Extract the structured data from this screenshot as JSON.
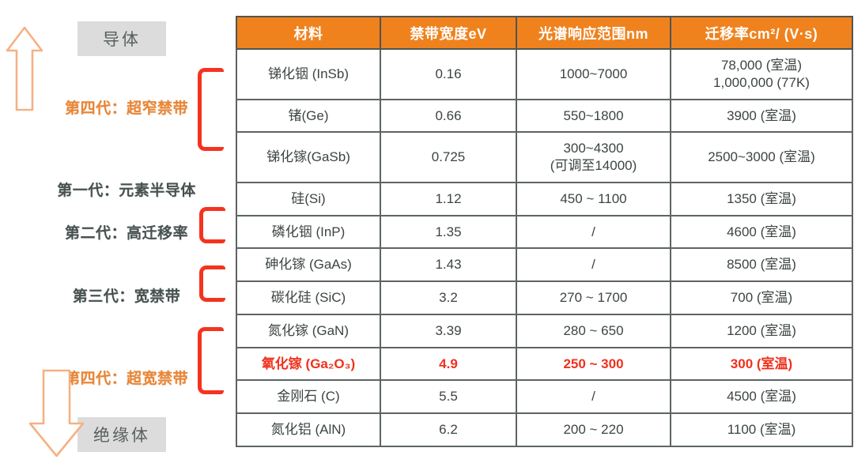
{
  "colors": {
    "header_orange": "#F0821E",
    "generation_orange": "#E98636",
    "highlight_red": "#F1301C",
    "bracket_red": "#F5331F",
    "arrow_outline": "#F5B183",
    "box_gray": "#DCDCDC",
    "table_border": "#5E6464",
    "cell_text": "#3C4443"
  },
  "left_panel": {
    "conductor_label": "导体",
    "insulator_label": "绝缘体",
    "generations": [
      {
        "id": "gen4-narrow",
        "label": "第四代：超窄禁带",
        "emphasis": "orange",
        "bracket_rows": [
          "锑化铟 (InSb)",
          "锗(Ge)",
          "锑化镓(GaSb)"
        ]
      },
      {
        "id": "gen1",
        "label": "第一代：元素半导体",
        "emphasis": "dark",
        "bracket_rows": [
          "硅(Si)"
        ]
      },
      {
        "id": "gen2",
        "label": "第二代：高迁移率",
        "emphasis": "dark",
        "bracket_rows": [
          "磷化铟 (InP)",
          "砷化镓 (GaAs)"
        ]
      },
      {
        "id": "gen3",
        "label": "第三代：宽禁带",
        "emphasis": "dark",
        "bracket_rows": [
          "碳化硅 (SiC)",
          "氮化镓 (GaN)"
        ]
      },
      {
        "id": "gen4-wide",
        "label": "第四代：超宽禁带",
        "emphasis": "orange",
        "bracket_rows": [
          "氧化镓 (Ga₂O₃)",
          "金刚石 (C)",
          "氮化铝 (AlN)"
        ]
      }
    ]
  },
  "chart_data": {
    "type": "table",
    "columns": [
      "材料",
      "禁带宽度eV",
      "光谱响应范围nm",
      "迁移率cm²/ (V·s)"
    ],
    "rows": [
      {
        "material": "锑化铟 (InSb)",
        "bandgap_eV": "0.16",
        "spectral_range_nm": "1000~7000",
        "mobility": "78,000 (室温)\n1,000,000 (77K)",
        "highlight": false
      },
      {
        "material": "锗(Ge)",
        "bandgap_eV": "0.66",
        "spectral_range_nm": "550~1800",
        "mobility": "3900 (室温)",
        "highlight": false
      },
      {
        "material": "锑化镓(GaSb)",
        "bandgap_eV": "0.725",
        "spectral_range_nm": "300~4300\n(可调至14000)",
        "mobility": "2500~3000 (室温)",
        "highlight": false
      },
      {
        "material": "硅(Si)",
        "bandgap_eV": "1.12",
        "spectral_range_nm": "450 ~ 1100",
        "mobility": "1350 (室温)",
        "highlight": false
      },
      {
        "material": "磷化铟 (InP)",
        "bandgap_eV": "1.35",
        "spectral_range_nm": "/",
        "mobility": "4600 (室温)",
        "highlight": false
      },
      {
        "material": "砷化镓 (GaAs)",
        "bandgap_eV": "1.43",
        "spectral_range_nm": "/",
        "mobility": "8500 (室温)",
        "highlight": false
      },
      {
        "material": "碳化硅 (SiC)",
        "bandgap_eV": "3.2",
        "spectral_range_nm": "270 ~ 1700",
        "mobility": "700 (室温)",
        "highlight": false
      },
      {
        "material": "氮化镓 (GaN)",
        "bandgap_eV": "3.39",
        "spectral_range_nm": "280 ~ 650",
        "mobility": "1200 (室温)",
        "highlight": false
      },
      {
        "material": "氧化镓 (Ga₂O₃)",
        "bandgap_eV": "4.9",
        "spectral_range_nm": "250 ~ 300",
        "mobility": "300 (室温)",
        "highlight": true
      },
      {
        "material": "金刚石 (C)",
        "bandgap_eV": "5.5",
        "spectral_range_nm": "/",
        "mobility": "4500 (室温)",
        "highlight": false
      },
      {
        "material": "氮化铝 (AlN)",
        "bandgap_eV": "6.2",
        "spectral_range_nm": "200 ~ 220",
        "mobility": "1100 (室温)",
        "highlight": false
      }
    ]
  }
}
